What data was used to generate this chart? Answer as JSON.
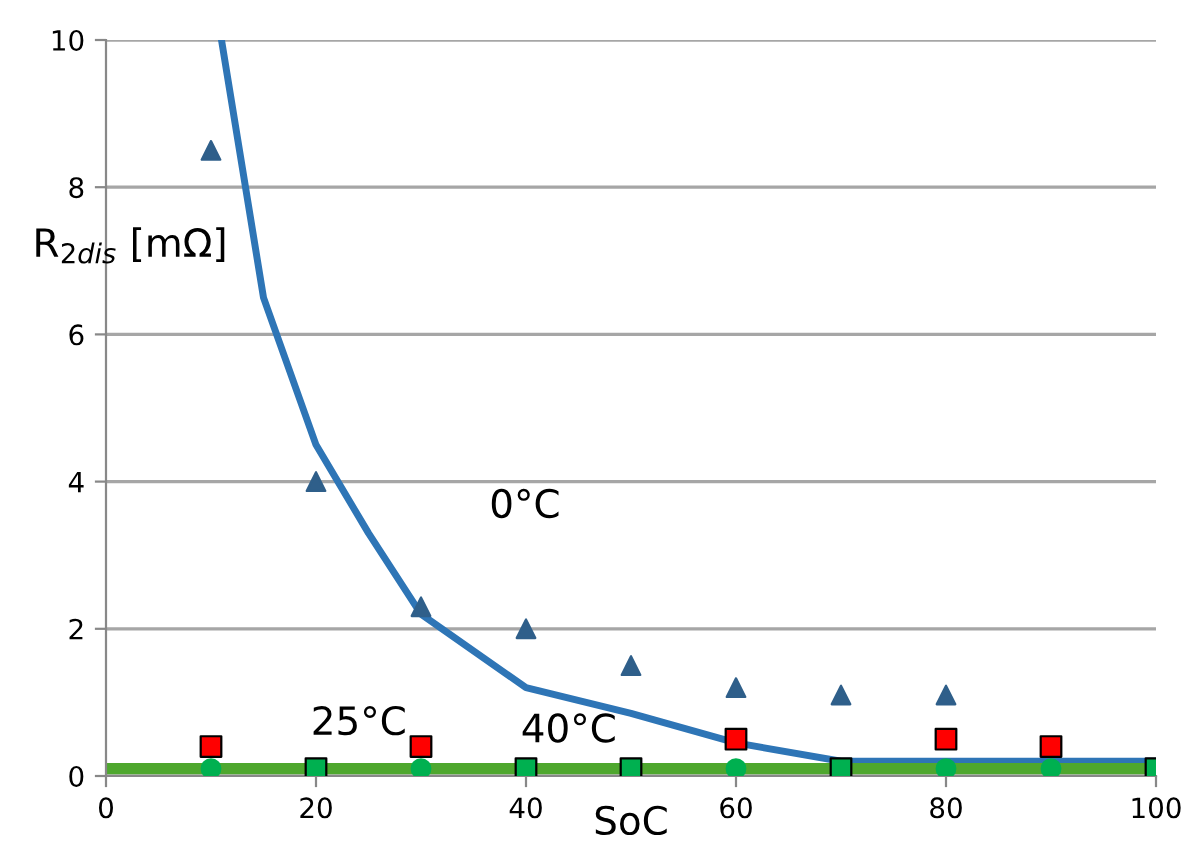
{
  "chart_data": {
    "type": "scatter",
    "xlabel": "SoC",
    "ylabel": "R$_{2dis}$ [mΩ]",
    "xlim": [
      0,
      100
    ],
    "ylim": [
      0,
      10
    ],
    "xticks": [
      0,
      20,
      40,
      60,
      80,
      100
    ],
    "yticks": [
      0,
      2,
      4,
      6,
      8,
      10
    ],
    "grid": "y",
    "legend": false,
    "series": [
      {
        "type": "line",
        "color": "#2e75b6",
        "marker": "none",
        "x": [
          11,
          15,
          20,
          25,
          30,
          40,
          50,
          60,
          70,
          100
        ],
        "values": [
          10,
          6.5,
          4.5,
          3.3,
          2.2,
          1.2,
          0.85,
          0.45,
          0.2,
          0.2
        ]
      },
      {
        "type": "line",
        "color": "#4ea72e",
        "marker": "none",
        "x": [
          0,
          100
        ],
        "values": [
          0.1,
          0.1
        ]
      },
      {
        "color": "#2f5f8a",
        "marker": "triangle",
        "x": [
          10,
          20,
          30,
          40,
          50,
          60,
          70,
          80
        ],
        "values": [
          8.5,
          4.0,
          2.3,
          2.0,
          1.5,
          1.2,
          1.1,
          1.1
        ]
      },
      {
        "color": "#ff0000",
        "marker": "square",
        "x": [
          10,
          30,
          60,
          80,
          90
        ],
        "values": [
          0.4,
          0.4,
          0.5,
          0.5,
          0.4
        ]
      },
      {
        "color": "#00b050",
        "marker": "square",
        "x": [
          20,
          40,
          50,
          70,
          100
        ],
        "values": [
          0.1,
          0.1,
          0.1,
          0.1,
          0.1
        ]
      },
      {
        "color": "#00b050",
        "marker": "circle",
        "x": [
          10,
          30,
          60,
          80,
          90
        ],
        "values": [
          0.1,
          0.1,
          0.1,
          0.1,
          0.1
        ]
      }
    ],
    "annotations": [
      "0°C",
      "25°C",
      "40°C"
    ]
  }
}
